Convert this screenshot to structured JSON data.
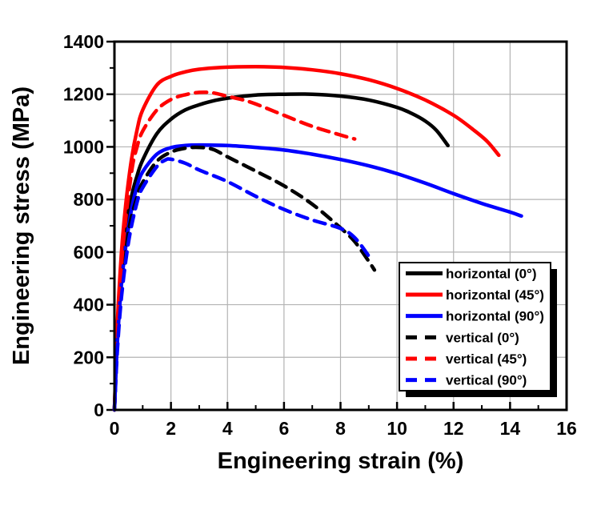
{
  "figure": {
    "background": "#ffffff",
    "frame_color": "#000000",
    "grid_color": "#b3b3b3"
  },
  "chart_data": {
    "type": "line",
    "title": "",
    "xlabel": "Engineering strain (%)",
    "ylabel": "Engineering stress (MPa)",
    "xlim": [
      0,
      16
    ],
    "ylim": [
      0,
      1400
    ],
    "x_major_ticks": [
      0,
      2,
      4,
      6,
      8,
      10,
      12,
      14,
      16
    ],
    "x_minor_ticks": [
      1,
      3,
      5,
      7,
      9,
      11,
      13,
      15
    ],
    "y_major_ticks": [
      0,
      200,
      400,
      600,
      800,
      1000,
      1200,
      1400
    ],
    "y_minor_ticks": [
      100,
      300,
      500,
      700,
      900,
      1100,
      1300
    ],
    "grid": true,
    "legend_position": "lower right",
    "series": [
      {
        "name": "horizontal (0°)",
        "color": "#000000",
        "style": "solid",
        "points": [
          [
            0,
            0
          ],
          [
            0.1,
            300
          ],
          [
            0.25,
            560
          ],
          [
            0.4,
            700
          ],
          [
            0.6,
            810
          ],
          [
            0.8,
            890
          ],
          [
            1.0,
            950
          ],
          [
            1.5,
            1050
          ],
          [
            2,
            1105
          ],
          [
            2.5,
            1140
          ],
          [
            3,
            1160
          ],
          [
            3.5,
            1175
          ],
          [
            4,
            1185
          ],
          [
            5,
            1197
          ],
          [
            6,
            1200
          ],
          [
            7,
            1200
          ],
          [
            8,
            1193
          ],
          [
            9,
            1178
          ],
          [
            10,
            1150
          ],
          [
            10.5,
            1128
          ],
          [
            11,
            1098
          ],
          [
            11.4,
            1062
          ],
          [
            11.8,
            1005
          ]
        ]
      },
      {
        "name": "horizontal (45°)",
        "color": "#ff0000",
        "style": "solid",
        "points": [
          [
            0,
            0
          ],
          [
            0.1,
            320
          ],
          [
            0.25,
            600
          ],
          [
            0.4,
            780
          ],
          [
            0.6,
            950
          ],
          [
            0.8,
            1065
          ],
          [
            1.0,
            1140
          ],
          [
            1.5,
            1235
          ],
          [
            2,
            1268
          ],
          [
            2.5,
            1285
          ],
          [
            3,
            1295
          ],
          [
            4,
            1303
          ],
          [
            5,
            1305
          ],
          [
            6,
            1302
          ],
          [
            7,
            1293
          ],
          [
            8,
            1278
          ],
          [
            9,
            1255
          ],
          [
            10,
            1222
          ],
          [
            11,
            1178
          ],
          [
            12,
            1120
          ],
          [
            12.7,
            1065
          ],
          [
            13.2,
            1020
          ],
          [
            13.6,
            968
          ]
        ]
      },
      {
        "name": "horizontal (90°)",
        "color": "#0000ff",
        "style": "solid",
        "points": [
          [
            0,
            0
          ],
          [
            0.1,
            250
          ],
          [
            0.25,
            480
          ],
          [
            0.4,
            620
          ],
          [
            0.6,
            760
          ],
          [
            0.8,
            850
          ],
          [
            1.0,
            905
          ],
          [
            1.5,
            972
          ],
          [
            2,
            997
          ],
          [
            2.5,
            1005
          ],
          [
            3,
            1007
          ],
          [
            4,
            1005
          ],
          [
            5,
            998
          ],
          [
            6,
            988
          ],
          [
            7,
            972
          ],
          [
            8,
            952
          ],
          [
            9,
            928
          ],
          [
            10,
            898
          ],
          [
            11,
            862
          ],
          [
            12,
            822
          ],
          [
            13,
            785
          ],
          [
            14,
            752
          ],
          [
            14.4,
            737
          ]
        ]
      },
      {
        "name": "vertical (0°)",
        "color": "#000000",
        "style": "dashed",
        "points": [
          [
            0,
            0
          ],
          [
            0.1,
            240
          ],
          [
            0.25,
            450
          ],
          [
            0.5,
            680
          ],
          [
            0.8,
            810
          ],
          [
            1,
            865
          ],
          [
            1.5,
            945
          ],
          [
            2,
            980
          ],
          [
            2.5,
            995
          ],
          [
            3,
            998
          ],
          [
            3.5,
            990
          ],
          [
            4,
            962
          ],
          [
            5,
            908
          ],
          [
            6,
            852
          ],
          [
            7,
            782
          ],
          [
            8,
            692
          ],
          [
            8.5,
            640
          ],
          [
            9,
            565
          ],
          [
            9.2,
            532
          ]
        ]
      },
      {
        "name": "vertical (45°)",
        "color": "#ff0000",
        "style": "dashed",
        "points": [
          [
            0,
            0
          ],
          [
            0.1,
            300
          ],
          [
            0.3,
            620
          ],
          [
            0.6,
            900
          ],
          [
            0.8,
            1000
          ],
          [
            1,
            1060
          ],
          [
            1.5,
            1140
          ],
          [
            2,
            1180
          ],
          [
            2.5,
            1198
          ],
          [
            3,
            1207
          ],
          [
            3.5,
            1205
          ],
          [
            4,
            1192
          ],
          [
            4.5,
            1180
          ],
          [
            5,
            1163
          ],
          [
            6,
            1120
          ],
          [
            7,
            1078
          ],
          [
            8,
            1045
          ],
          [
            8.5,
            1030
          ]
        ]
      },
      {
        "name": "vertical (90°)",
        "color": "#0000ff",
        "style": "dashed",
        "points": [
          [
            0,
            0
          ],
          [
            0.1,
            220
          ],
          [
            0.25,
            430
          ],
          [
            0.5,
            640
          ],
          [
            0.8,
            790
          ],
          [
            1,
            845
          ],
          [
            1.5,
            925
          ],
          [
            1.8,
            950
          ],
          [
            2,
            953
          ],
          [
            2.5,
            938
          ],
          [
            3,
            912
          ],
          [
            4,
            868
          ],
          [
            5,
            812
          ],
          [
            6,
            762
          ],
          [
            7,
            722
          ],
          [
            8,
            690
          ],
          [
            8.5,
            655
          ],
          [
            9,
            585
          ],
          [
            9.1,
            565
          ]
        ]
      }
    ]
  }
}
